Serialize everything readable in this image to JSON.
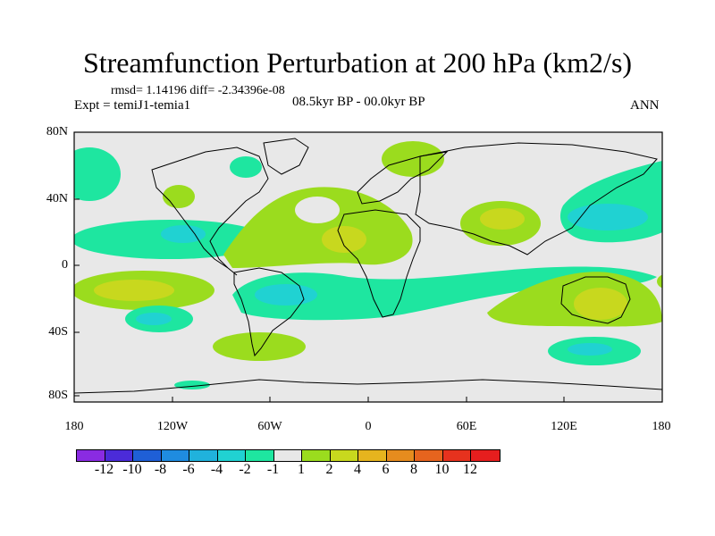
{
  "title": "Streamfunction Perturbation at 200 hPa (km2/s)",
  "stats": "rmsd= 1.14196 diff= -2.34396e-08",
  "expt": "Expt = temiJ1-temia1",
  "period": "08.5kyr BP - 00.0kyr BP",
  "season": "ANN",
  "lat_labels": [
    "80N",
    "40N",
    "0",
    "40S",
    "80S"
  ],
  "lon_labels": [
    "180",
    "120W",
    "60W",
    "0",
    "60E",
    "120E",
    "180"
  ],
  "colorbar": {
    "labels": [
      "-12",
      "-10",
      "-8",
      "-6",
      "-4",
      "-2",
      "-1",
      "1",
      "2",
      "4",
      "6",
      "8",
      "10",
      "12"
    ],
    "colors": [
      "#8a2be2",
      "#4b2bd8",
      "#1f5fd6",
      "#1f8ce0",
      "#20b2dc",
      "#20d2d2",
      "#1ee6a0",
      "#e8e8e8",
      "#9bdc1e",
      "#c8d81e",
      "#e6b41e",
      "#e68c1e",
      "#e6641e",
      "#e6321e",
      "#e61e1e"
    ]
  },
  "colors": {
    "background": "#e8e8e8",
    "c_neg1": "#1ee6a0",
    "c_neg2": "#20d2d2",
    "c_pos1": "#9bdc1e",
    "c_pos2": "#c8d81e"
  }
}
